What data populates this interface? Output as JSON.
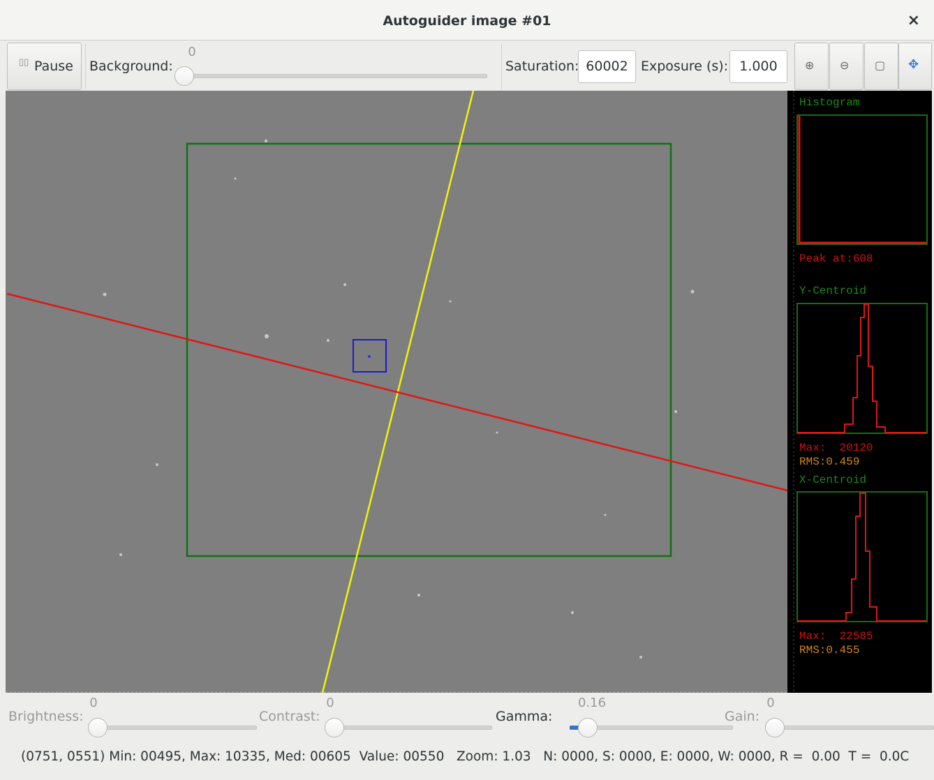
{
  "window": {
    "title": "Autoguider image #01",
    "close": "×"
  },
  "toolbar": {
    "pause": "Pause",
    "background_label": "Background:",
    "background_value": "0",
    "saturation_label": "Saturation:",
    "saturation_value": "60002",
    "exposure_label": "Exposure (s):",
    "exposure_value": "1.000"
  },
  "side_panel": {
    "histogram_title": "Histogram",
    "histogram_peak": "Peak at:608",
    "y_centroid_title": "Y-Centroid",
    "y_centroid_max": "Max:  20120",
    "y_centroid_rms": "RMS:0.459",
    "x_centroid_title": "X-Centroid",
    "x_centroid_max": "Max:  22585",
    "x_centroid_rms": "RMS:0.455"
  },
  "sliders": [
    {
      "label": "Brightness:",
      "value": "0"
    },
    {
      "label": "Contrast:",
      "value": "0"
    },
    {
      "label": "Gamma:",
      "value": "0.16"
    },
    {
      "label": "Gain:",
      "value": "0"
    }
  ],
  "status": "(0751, 0551) Min: 00495, Max: 10335, Med: 00605  Value: 00550   Zoom: 1.03   N: 0000, S: 0000, E: 0000, W: 0000, R =  0.00  T =  0.0C"
}
